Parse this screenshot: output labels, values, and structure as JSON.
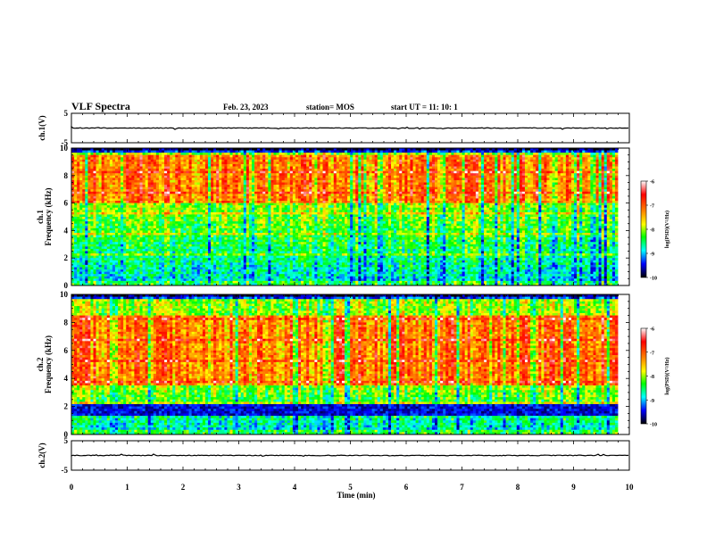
{
  "header": {
    "title": "VLF Spectra",
    "date": "Feb. 23, 2023",
    "station": "station= MOS",
    "start": "start  UT =   11: 10: 1"
  },
  "colorbar": {
    "label": "log(PSD)(V²/Hz)",
    "ticks": [
      -6,
      -7,
      -8,
      -9,
      -10
    ],
    "colors": [
      "#ffffff",
      "#ff0000",
      "#ff8c00",
      "#ffff00",
      "#00ff00",
      "#00ffff",
      "#0000ff",
      "#000000"
    ]
  },
  "chart_data": [
    {
      "type": "line",
      "name": "waveform-ch1",
      "ylabel": "ch.1(V)",
      "ylim": [
        -5,
        5
      ],
      "yticks": [
        "5",
        "-5"
      ],
      "xlim": [
        0,
        10
      ],
      "baseline": 0
    },
    {
      "type": "heatmap",
      "name": "spectrogram-ch1",
      "ylabel": "ch.1\nFrequency (kHz)",
      "ylim": [
        0,
        10
      ],
      "yticks": [
        "0",
        "2",
        "4",
        "6",
        "8",
        "10"
      ],
      "xlim": [
        0,
        9.83
      ],
      "value_range": [
        -10,
        -6
      ],
      "strong_band_khz": [
        6,
        9.5
      ]
    },
    {
      "type": "heatmap",
      "name": "spectrogram-ch2",
      "ylabel": "ch.2\nFrequency (kHz)",
      "ylim": [
        0,
        10
      ],
      "yticks": [
        "0",
        "2",
        "4",
        "6",
        "8",
        "10"
      ],
      "xlim": [
        0,
        9.83
      ],
      "value_range": [
        -10,
        -6
      ],
      "strong_band_khz": [
        3.5,
        8.5
      ]
    },
    {
      "type": "line",
      "name": "waveform-ch2",
      "ylabel": "ch.2(V)",
      "ylim": [
        -5,
        5
      ],
      "yticks": [
        "5",
        "-5"
      ],
      "xlim": [
        0,
        10
      ],
      "baseline": 0
    }
  ],
  "xaxis": {
    "label": "Time (min)",
    "ticks": [
      "0",
      "1",
      "2",
      "3",
      "4",
      "5",
      "6",
      "7",
      "8",
      "9",
      "10"
    ]
  }
}
